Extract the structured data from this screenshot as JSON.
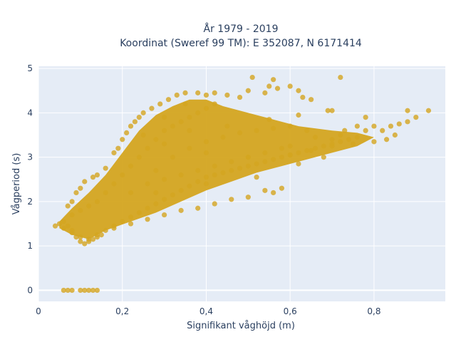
{
  "chart_data": {
    "type": "scatter",
    "title_line1": "År 1979 - 2019",
    "title_line2": "Koordinat (Sweref 99 TM): E 352087, N 6171414",
    "xlabel": "Signifikant våghöjd (m)",
    "ylabel": "Vågperiod (s)",
    "xlim": [
      0,
      0.97
    ],
    "ylim": [
      -0.25,
      5.05
    ],
    "x_ticks": [
      0,
      0.2,
      0.4,
      0.6,
      0.8
    ],
    "x_tick_labels": [
      "0",
      "0,2",
      "0,4",
      "0,6",
      "0,8"
    ],
    "y_ticks": [
      0,
      1,
      2,
      3,
      4,
      5
    ],
    "y_tick_labels": [
      "0",
      "1",
      "2",
      "3",
      "4",
      "5"
    ],
    "grid": true,
    "plot_bg": "#e5ecf6",
    "marker_color": "#d4a520",
    "marker_opacity": 0.8,
    "points": [
      [
        0.06,
        0
      ],
      [
        0.07,
        0
      ],
      [
        0.08,
        0
      ],
      [
        0.1,
        0
      ],
      [
        0.11,
        0
      ],
      [
        0.12,
        0
      ],
      [
        0.13,
        0
      ],
      [
        0.14,
        0
      ],
      [
        0.04,
        1.45
      ],
      [
        0.05,
        1.5
      ],
      [
        0.06,
        1.55
      ],
      [
        0.07,
        1.45
      ],
      [
        0.08,
        1.35
      ],
      [
        0.09,
        1.2
      ],
      [
        0.1,
        1.1
      ],
      [
        0.11,
        1.05
      ],
      [
        0.12,
        1.1
      ],
      [
        0.13,
        1.15
      ],
      [
        0.14,
        1.2
      ],
      [
        0.15,
        1.25
      ],
      [
        0.07,
        1.9
      ],
      [
        0.08,
        2.0
      ],
      [
        0.09,
        2.2
      ],
      [
        0.1,
        2.3
      ],
      [
        0.11,
        2.45
      ],
      [
        0.13,
        2.55
      ],
      [
        0.14,
        2.6
      ],
      [
        0.16,
        2.75
      ],
      [
        0.18,
        3.1
      ],
      [
        0.19,
        3.2
      ],
      [
        0.2,
        3.4
      ],
      [
        0.21,
        3.55
      ],
      [
        0.22,
        3.7
      ],
      [
        0.23,
        3.8
      ],
      [
        0.24,
        3.9
      ],
      [
        0.25,
        4.0
      ],
      [
        0.27,
        4.1
      ],
      [
        0.29,
        4.2
      ],
      [
        0.31,
        4.3
      ],
      [
        0.33,
        4.4
      ],
      [
        0.35,
        4.45
      ],
      [
        0.38,
        4.45
      ],
      [
        0.4,
        4.4
      ],
      [
        0.42,
        4.45
      ],
      [
        0.45,
        4.4
      ],
      [
        0.48,
        4.35
      ],
      [
        0.5,
        4.5
      ],
      [
        0.51,
        4.8
      ],
      [
        0.54,
        4.45
      ],
      [
        0.55,
        4.6
      ],
      [
        0.56,
        4.75
      ],
      [
        0.57,
        4.55
      ],
      [
        0.6,
        4.6
      ],
      [
        0.62,
        4.5
      ],
      [
        0.63,
        4.35
      ],
      [
        0.65,
        4.3
      ],
      [
        0.69,
        4.05
      ],
      [
        0.7,
        4.05
      ],
      [
        0.72,
        4.8
      ],
      [
        0.73,
        3.6
      ],
      [
        0.76,
        3.7
      ],
      [
        0.78,
        3.9
      ],
      [
        0.8,
        3.7
      ],
      [
        0.82,
        3.6
      ],
      [
        0.84,
        3.7
      ],
      [
        0.86,
        3.75
      ],
      [
        0.88,
        4.05
      ],
      [
        0.9,
        3.9
      ],
      [
        0.93,
        4.05
      ],
      [
        0.88,
        3.8
      ],
      [
        0.85,
        3.5
      ],
      [
        0.83,
        3.4
      ],
      [
        0.8,
        3.35
      ],
      [
        0.75,
        3.3
      ],
      [
        0.7,
        3.25
      ],
      [
        0.65,
        3.15
      ],
      [
        0.6,
        3.05
      ],
      [
        0.58,
        2.3
      ],
      [
        0.56,
        2.2
      ],
      [
        0.54,
        2.25
      ],
      [
        0.5,
        2.1
      ],
      [
        0.46,
        2.05
      ],
      [
        0.42,
        1.95
      ],
      [
        0.38,
        1.85
      ],
      [
        0.34,
        1.8
      ],
      [
        0.3,
        1.7
      ],
      [
        0.26,
        1.6
      ],
      [
        0.22,
        1.5
      ],
      [
        0.18,
        1.4
      ],
      [
        0.3,
        3.3
      ],
      [
        0.4,
        3.1
      ],
      [
        0.5,
        3.0
      ],
      [
        0.6,
        3.25
      ],
      [
        0.7,
        3.4
      ],
      [
        0.78,
        3.6
      ],
      [
        0.36,
        3.6
      ],
      [
        0.45,
        3.7
      ],
      [
        0.55,
        3.85
      ],
      [
        0.62,
        3.95
      ],
      [
        0.66,
        3.45
      ],
      [
        0.72,
        3.5
      ],
      [
        0.28,
        2.2
      ],
      [
        0.4,
        2.4
      ],
      [
        0.52,
        2.55
      ],
      [
        0.62,
        2.85
      ],
      [
        0.68,
        3.0
      ]
    ]
  }
}
